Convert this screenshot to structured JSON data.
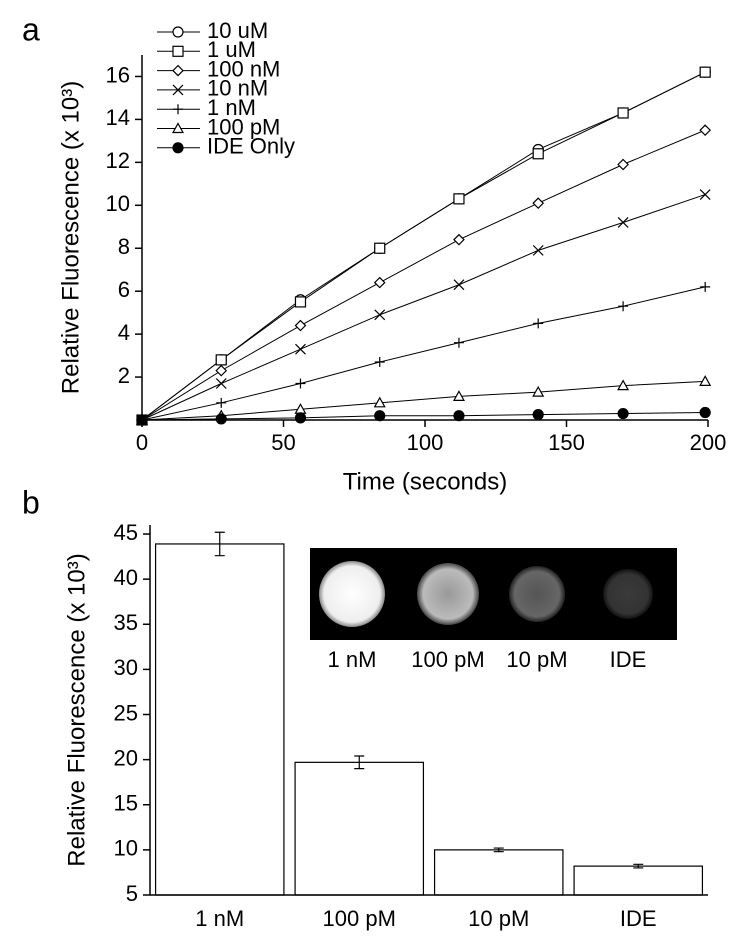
{
  "chart_data": [
    {
      "type": "line",
      "panel_label": "a",
      "x_label": "Time (seconds)",
      "y_label": "Relative Fluorescence (x 10³)",
      "x": [
        0,
        28,
        56,
        84,
        112,
        140,
        170,
        199
      ],
      "xlim": [
        0,
        200
      ],
      "xticks": [
        0,
        50,
        100,
        150,
        200
      ],
      "ylim": [
        0,
        17
      ],
      "yticks": [
        2,
        4,
        6,
        8,
        10,
        12,
        14,
        16
      ],
      "color": "#000000",
      "legend": "top-left",
      "series": [
        {
          "name": "10 uM",
          "marker": "circle",
          "values": [
            0,
            2.8,
            5.6,
            8.0,
            10.3,
            12.6,
            14.3,
            16.2
          ]
        },
        {
          "name": "1 uM",
          "marker": "square",
          "values": [
            0,
            2.8,
            5.5,
            8.0,
            10.3,
            12.4,
            14.3,
            16.2
          ]
        },
        {
          "name": "100 nM",
          "marker": "diamond",
          "values": [
            0,
            2.3,
            4.4,
            6.4,
            8.4,
            10.1,
            11.9,
            13.5
          ]
        },
        {
          "name": "10 nM",
          "marker": "x",
          "values": [
            0,
            1.7,
            3.3,
            4.9,
            6.3,
            7.9,
            9.2,
            10.5
          ]
        },
        {
          "name": "1 nM",
          "marker": "plus",
          "values": [
            0,
            0.8,
            1.7,
            2.7,
            3.6,
            4.5,
            5.3,
            6.2
          ]
        },
        {
          "name": "100 pM",
          "marker": "triangle",
          "values": [
            0,
            0.2,
            0.5,
            0.8,
            1.1,
            1.3,
            1.6,
            1.8
          ]
        },
        {
          "name": "IDE Only",
          "marker": "filled-circle",
          "values": [
            0,
            0.05,
            0.1,
            0.2,
            0.2,
            0.25,
            0.3,
            0.35
          ]
        }
      ]
    },
    {
      "type": "bar",
      "panel_label": "b",
      "y_label": "Relative Fluorescence (x 10³)",
      "categories": [
        "1 nM",
        "100 pM",
        "10 pM",
        "IDE"
      ],
      "values": [
        43.9,
        19.7,
        10.0,
        8.2
      ],
      "errors": [
        1.3,
        0.7,
        0.2,
        0.2
      ],
      "color": "#ffffff",
      "ylim": [
        5,
        46
      ],
      "yticks": [
        5,
        10,
        15,
        20,
        25,
        30,
        35,
        40,
        45
      ],
      "inset_labels": [
        "1 nM",
        "100 pM",
        "10 pM",
        "IDE"
      ]
    }
  ]
}
